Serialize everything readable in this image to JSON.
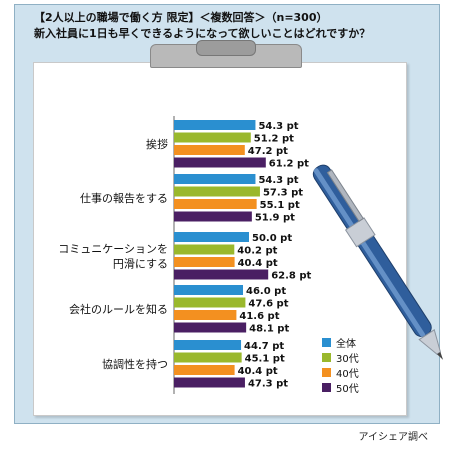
{
  "header": {
    "line1": "【2人以上の職場で働く方 限定】＜複数回答＞（n=300）",
    "line2": "新入社員に1日も早くできるようになって欲しいことはどれですか？"
  },
  "credit": "アイシェア調べ",
  "colors": {
    "frame_bg": "#cfe2ee",
    "series": [
      "#2a8fd0",
      "#9ab82c",
      "#f39020",
      "#4a1f63"
    ]
  },
  "chart_data": {
    "type": "bar",
    "orientation": "horizontal",
    "unit": "pt",
    "categories": [
      [
        "挨拶"
      ],
      [
        "仕事の報告をする"
      ],
      [
        "コミュニケーションを",
        "円滑にする"
      ],
      [
        "会社のルールを知る"
      ],
      [
        "協調性を持つ"
      ]
    ],
    "series": [
      {
        "name": "全体",
        "values": [
          54.3,
          54.3,
          50.0,
          46.0,
          44.7
        ]
      },
      {
        "name": "30代",
        "values": [
          51.2,
          57.3,
          40.2,
          47.6,
          45.1
        ]
      },
      {
        "name": "40代",
        "values": [
          47.2,
          55.1,
          40.4,
          41.6,
          40.4
        ]
      },
      {
        "name": "50代",
        "values": [
          61.2,
          51.9,
          62.8,
          48.1,
          47.3
        ]
      }
    ],
    "value_labels": [
      [
        "54.3 pt",
        "51.2 pt",
        "47.2 pt",
        "61.2 pt"
      ],
      [
        "54.3 pt",
        "57.3 pt",
        "55.1 pt",
        "51.9 pt"
      ],
      [
        "50.0 pt",
        "40.2 pt",
        "40.4 pt",
        "62.8 pt"
      ],
      [
        "46.0 pt",
        "47.6 pt",
        "41.6 pt",
        "48.1 pt"
      ],
      [
        "44.7 pt",
        "45.1 pt",
        "40.4 pt",
        "47.3 pt"
      ]
    ],
    "legend": [
      "全体",
      "30代",
      "40代",
      "50代"
    ],
    "legend_position": "bottom-right",
    "xlim": [
      0,
      100
    ],
    "grid": false
  }
}
